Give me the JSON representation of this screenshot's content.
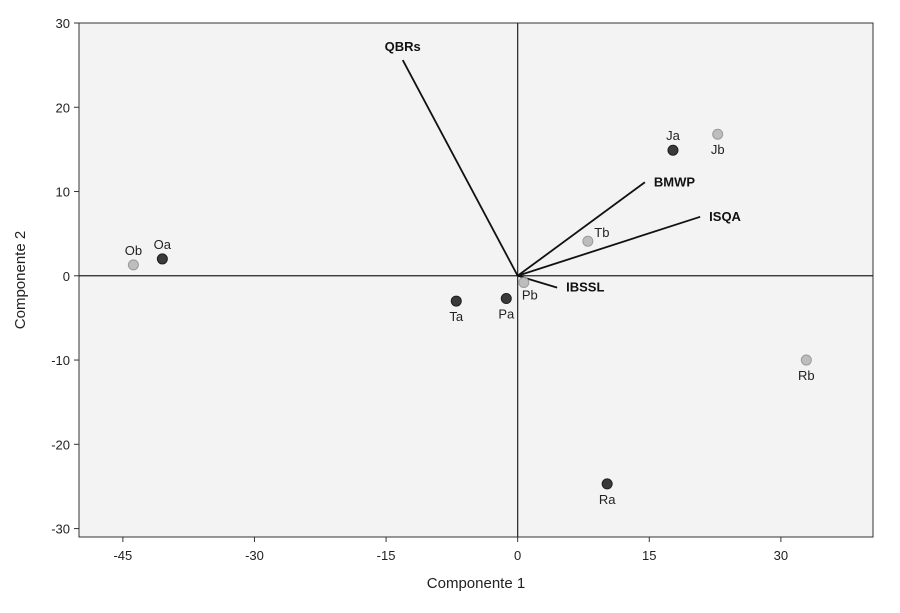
{
  "chart_data": {
    "type": "scatter",
    "title": "",
    "xlabel": "Componente 1",
    "ylabel": "Componente 2",
    "xlim": [
      -50,
      40.5
    ],
    "ylim": [
      -31,
      30
    ],
    "x_ticks": [
      -45,
      -30,
      -15,
      0,
      15,
      30
    ],
    "y_ticks": [
      -30,
      -20,
      -10,
      0,
      10,
      20,
      30
    ],
    "grid": false,
    "colors": {
      "series_a": "#3a3a3a",
      "series_b": "#bdbdbd",
      "plot_bg": "#f3f3f3",
      "vector": "#111111"
    },
    "points": [
      {
        "label": "Oa",
        "x": -40.5,
        "y": 2.0,
        "group": "a",
        "label_pos": "above"
      },
      {
        "label": "Ob",
        "x": -43.8,
        "y": 1.3,
        "group": "b",
        "label_pos": "above"
      },
      {
        "label": "Ta",
        "x": -7.0,
        "y": -3.0,
        "group": "a",
        "label_pos": "below"
      },
      {
        "label": "Pa",
        "x": -1.3,
        "y": -2.7,
        "group": "a",
        "label_pos": "below"
      },
      {
        "label": "Pb",
        "x": 0.7,
        "y": -0.8,
        "group": "b",
        "label_pos": "below-right"
      },
      {
        "label": "Tb",
        "x": 8.0,
        "y": 4.1,
        "group": "b",
        "label_pos": "above-right"
      },
      {
        "label": "Ja",
        "x": 17.7,
        "y": 14.9,
        "group": "a",
        "label_pos": "above"
      },
      {
        "label": "Jb",
        "x": 22.8,
        "y": 16.8,
        "group": "b",
        "label_pos": "below"
      },
      {
        "label": "Rb",
        "x": 32.9,
        "y": -10.0,
        "group": "b",
        "label_pos": "below"
      },
      {
        "label": "Ra",
        "x": 10.2,
        "y": -24.7,
        "group": "a",
        "label_pos": "below"
      }
    ],
    "vectors": [
      {
        "label": "QBRs",
        "x": -13.1,
        "y": 25.6,
        "label_pos": "above"
      },
      {
        "label": "BMWP",
        "x": 14.5,
        "y": 11.1,
        "label_pos": "right"
      },
      {
        "label": "ISQA",
        "x": 20.8,
        "y": 7.0,
        "label_pos": "right"
      },
      {
        "label": "IBSSL",
        "x": 4.5,
        "y": -1.4,
        "label_pos": "right"
      }
    ]
  }
}
